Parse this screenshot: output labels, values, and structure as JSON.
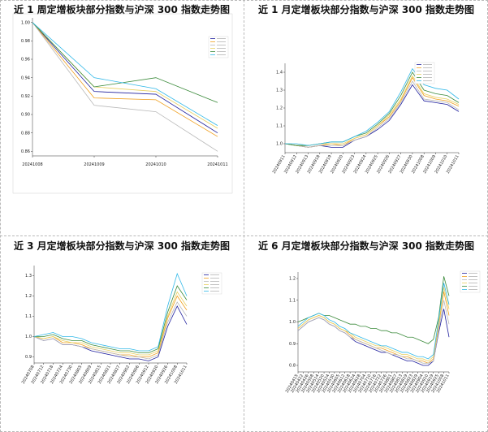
{
  "panels": [
    {
      "title": "近 1 周定增板块部分指数与沪深 300 指数走势图",
      "chart_data": {
        "type": "line",
        "x": [
          "20241008",
          "20241009",
          "20241010",
          "20241011"
        ],
        "x_ticks": [
          "20241008",
          "20241009",
          "20241010",
          "20241011"
        ],
        "y_ticks": [
          "1.00",
          "0.98",
          "0.96",
          "0.94",
          "0.92",
          "0.90",
          "0.88",
          "0.86"
        ],
        "ylim": [
          0.855,
          1.005
        ],
        "legend_position": "top-right",
        "grid": false,
        "series": [
          {
            "values": [
              1.0,
              0.925,
              0.922,
              0.88
            ],
            "color": "#1f1f9e"
          },
          {
            "values": [
              1.0,
              0.918,
              0.916,
              0.876
            ],
            "color": "#f0a020"
          },
          {
            "values": [
              1.0,
              0.91,
              0.903,
              0.86
            ],
            "color": "#b8b8b8"
          },
          {
            "values": [
              1.0,
              0.93,
              0.925,
              0.885
            ],
            "color": "#e8d060"
          },
          {
            "values": [
              1.0,
              0.93,
              0.94,
              0.913
            ],
            "color": "#3a8a3a"
          },
          {
            "values": [
              1.0,
              0.94,
              0.928,
              0.888
            ],
            "color": "#30b8e8"
          }
        ]
      }
    },
    {
      "title": "近 1 月定增板块部分指数与沪深 300 指数走势图",
      "chart_data": {
        "type": "line",
        "x_ticks": [
          "20240911",
          "20240912",
          "20240913",
          "20240918",
          "20240919",
          "20240920",
          "20240923",
          "20240924",
          "20240925",
          "20240926",
          "20240927",
          "20240930",
          "20241008",
          "20241009",
          "20241010",
          "20241011"
        ],
        "y_ticks": [
          "1.4",
          "1.3",
          "1.2",
          "1.1",
          "1.0"
        ],
        "ylim": [
          0.95,
          1.45
        ],
        "legend_position": "top-right",
        "grid": false,
        "series": [
          {
            "values": [
              1.0,
              0.99,
              0.98,
              0.99,
              0.98,
              0.98,
              1.02,
              1.04,
              1.08,
              1.13,
              1.22,
              1.33,
              1.24,
              1.23,
              1.22,
              1.18
            ],
            "color": "#1f1f9e"
          },
          {
            "values": [
              1.0,
              0.99,
              0.98,
              0.99,
              1.0,
              0.99,
              1.03,
              1.05,
              1.1,
              1.15,
              1.24,
              1.37,
              1.27,
              1.25,
              1.24,
              1.21
            ],
            "color": "#f0a020"
          },
          {
            "values": [
              1.0,
              0.99,
              0.98,
              0.99,
              0.99,
              0.99,
              1.02,
              1.04,
              1.09,
              1.14,
              1.23,
              1.35,
              1.25,
              1.24,
              1.23,
              1.19
            ],
            "color": "#b8b8b8"
          },
          {
            "values": [
              1.0,
              0.99,
              0.99,
              1.0,
              1.0,
              1.0,
              1.03,
              1.05,
              1.1,
              1.16,
              1.25,
              1.38,
              1.28,
              1.26,
              1.25,
              1.22
            ],
            "color": "#e8d060"
          },
          {
            "values": [
              1.0,
              0.99,
              0.99,
              1.0,
              1.01,
              1.01,
              1.04,
              1.06,
              1.11,
              1.17,
              1.27,
              1.4,
              1.3,
              1.28,
              1.27,
              1.23
            ],
            "color": "#3a8a3a"
          },
          {
            "values": [
              1.0,
              1.0,
              0.99,
              1.0,
              1.01,
              1.01,
              1.04,
              1.07,
              1.12,
              1.18,
              1.29,
              1.42,
              1.33,
              1.31,
              1.3,
              1.25
            ],
            "color": "#30b8e8"
          }
        ]
      }
    },
    {
      "title": "近 3 月定增板块部分指数与沪深 300 指数走势图",
      "chart_data": {
        "type": "line",
        "x_ticks": [
          "20240708",
          "20240712",
          "20240718",
          "20240724",
          "20240730",
          "20240805",
          "20240809",
          "20240815",
          "20240821",
          "20240827",
          "20240902",
          "20240906",
          "20240912",
          "20240920",
          "20240926",
          "20241008",
          "20241011"
        ],
        "y_ticks": [
          "1.3",
          "1.2",
          "1.1",
          "1.0",
          "0.9"
        ],
        "ylim": [
          0.87,
          1.35
        ],
        "legend_position": "top-right",
        "grid": false,
        "series": [
          {
            "values": [
              1.0,
              0.98,
              0.99,
              0.96,
              0.96,
              0.95,
              0.93,
              0.92,
              0.91,
              0.9,
              0.89,
              0.89,
              0.88,
              0.9,
              1.05,
              1.15,
              1.06
            ],
            "color": "#1f1f9e"
          },
          {
            "values": [
              1.0,
              0.99,
              1.0,
              0.97,
              0.97,
              0.96,
              0.94,
              0.93,
              0.92,
              0.91,
              0.91,
              0.9,
              0.9,
              0.92,
              1.09,
              1.2,
              1.13
            ],
            "color": "#f0a020"
          },
          {
            "values": [
              1.0,
              0.98,
              0.99,
              0.96,
              0.96,
              0.95,
              0.94,
              0.93,
              0.92,
              0.91,
              0.9,
              0.9,
              0.89,
              0.91,
              1.07,
              1.17,
              1.1
            ],
            "color": "#b8b8b8"
          },
          {
            "values": [
              1.0,
              0.99,
              1.0,
              0.98,
              0.97,
              0.97,
              0.95,
              0.94,
              0.93,
              0.92,
              0.92,
              0.91,
              0.91,
              0.93,
              1.1,
              1.22,
              1.15
            ],
            "color": "#e8d060"
          },
          {
            "values": [
              1.0,
              1.0,
              1.01,
              0.99,
              0.98,
              0.98,
              0.96,
              0.95,
              0.94,
              0.93,
              0.93,
              0.92,
              0.92,
              0.94,
              1.12,
              1.25,
              1.18
            ],
            "color": "#3a8a3a"
          },
          {
            "values": [
              1.0,
              1.01,
              1.02,
              1.0,
              1.0,
              0.99,
              0.97,
              0.96,
              0.95,
              0.94,
              0.94,
              0.93,
              0.93,
              0.95,
              1.15,
              1.31,
              1.2
            ],
            "color": "#30b8e8"
          }
        ]
      }
    },
    {
      "title": "近 6 月定增板块部分指数与沪深 300 指数走势图",
      "chart_data": {
        "type": "line",
        "x_ticks": [
          "20240415",
          "20240422",
          "20240426",
          "20240508",
          "20240514",
          "20240520",
          "20240524",
          "20240530",
          "20240605",
          "20240612",
          "20240618",
          "20240624",
          "20240628",
          "20240704",
          "20240710",
          "20240716",
          "20240722",
          "20240726",
          "20240801",
          "20240807",
          "20240813",
          "20240819",
          "20240823",
          "20240829",
          "20240904",
          "20240910",
          "20240919",
          "20240925",
          "20241008",
          "20241011"
        ],
        "y_ticks": [
          "1.2",
          "1.1",
          "1.0",
          "0.9",
          "0.8"
        ],
        "ylim": [
          0.77,
          1.23
        ],
        "legend_position": "top-right",
        "grid": false,
        "series": [
          {
            "values": [
              0.96,
              0.98,
              1.0,
              1.01,
              1.02,
              1.01,
              0.99,
              0.98,
              0.96,
              0.95,
              0.93,
              0.91,
              0.9,
              0.89,
              0.88,
              0.87,
              0.86,
              0.86,
              0.85,
              0.84,
              0.83,
              0.82,
              0.82,
              0.81,
              0.8,
              0.8,
              0.82,
              0.95,
              1.06,
              0.93
            ],
            "color": "#1f1f9e"
          },
          {
            "values": [
              0.97,
              0.99,
              1.01,
              1.02,
              1.03,
              1.02,
              1.0,
              0.99,
              0.97,
              0.96,
              0.94,
              0.92,
              0.91,
              0.9,
              0.89,
              0.88,
              0.88,
              0.87,
              0.86,
              0.85,
              0.84,
              0.84,
              0.83,
              0.82,
              0.82,
              0.81,
              0.83,
              0.98,
              1.14,
              1.03
            ],
            "color": "#f0a020"
          },
          {
            "values": [
              0.96,
              0.98,
              1.0,
              1.01,
              1.02,
              1.01,
              0.99,
              0.98,
              0.96,
              0.95,
              0.93,
              0.92,
              0.91,
              0.9,
              0.89,
              0.88,
              0.87,
              0.86,
              0.85,
              0.85,
              0.84,
              0.83,
              0.83,
              0.82,
              0.81,
              0.81,
              0.82,
              0.96,
              1.1,
              0.99
            ],
            "color": "#b8b8b8"
          },
          {
            "values": [
              0.97,
              0.99,
              1.01,
              1.02,
              1.03,
              1.02,
              1.0,
              0.99,
              0.97,
              0.96,
              0.95,
              0.93,
              0.92,
              0.91,
              0.9,
              0.89,
              0.89,
              0.88,
              0.87,
              0.86,
              0.85,
              0.85,
              0.84,
              0.83,
              0.83,
              0.82,
              0.84,
              0.99,
              1.16,
              1.06
            ],
            "color": "#e8d060"
          },
          {
            "values": [
              1.0,
              1.01,
              1.02,
              1.03,
              1.04,
              1.03,
              1.03,
              1.02,
              1.01,
              1.0,
              0.99,
              0.99,
              0.98,
              0.98,
              0.97,
              0.97,
              0.96,
              0.96,
              0.95,
              0.95,
              0.94,
              0.93,
              0.93,
              0.92,
              0.91,
              0.9,
              0.92,
              1.02,
              1.21,
              1.12
            ],
            "color": "#3a8a3a"
          },
          {
            "values": [
              0.98,
              1.0,
              1.02,
              1.03,
              1.04,
              1.03,
              1.01,
              1.0,
              0.98,
              0.97,
              0.95,
              0.94,
              0.93,
              0.92,
              0.91,
              0.9,
              0.89,
              0.89,
              0.88,
              0.87,
              0.86,
              0.86,
              0.85,
              0.84,
              0.84,
              0.83,
              0.85,
              1.01,
              1.18,
              1.08
            ],
            "color": "#30b8e8"
          }
        ]
      }
    }
  ]
}
